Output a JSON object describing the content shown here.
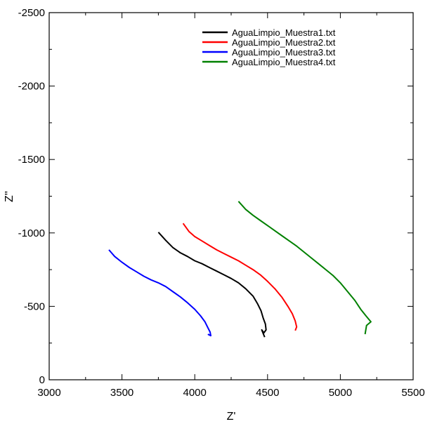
{
  "chart_data": {
    "type": "line",
    "title": "",
    "xlabel": "Z'",
    "ylabel": "Z''",
    "xlim": [
      3000,
      5500
    ],
    "ylim": [
      0,
      -2500
    ],
    "y_axis_inverted": true,
    "x_ticks": [
      3000,
      3500,
      4000,
      4500,
      5000,
      5500
    ],
    "y_ticks": [
      0,
      -500,
      -1000,
      -1500,
      -2000,
      -2500
    ],
    "grid": false,
    "legend_position": "top-right",
    "series": [
      {
        "name": "AguaLimpio_Muestra1.txt",
        "color": "#000000",
        "points": [
          [
            3750,
            -1005
          ],
          [
            3800,
            -950
          ],
          [
            3850,
            -900
          ],
          [
            3900,
            -865
          ],
          [
            3950,
            -840
          ],
          [
            4000,
            -810
          ],
          [
            4050,
            -790
          ],
          [
            4100,
            -765
          ],
          [
            4150,
            -740
          ],
          [
            4200,
            -715
          ],
          [
            4250,
            -690
          ],
          [
            4300,
            -660
          ],
          [
            4350,
            -620
          ],
          [
            4400,
            -570
          ],
          [
            4430,
            -520
          ],
          [
            4455,
            -470
          ],
          [
            4470,
            -420
          ],
          [
            4485,
            -380
          ],
          [
            4490,
            -340
          ],
          [
            4475,
            -320
          ],
          [
            4460,
            -340
          ],
          [
            4480,
            -290
          ]
        ]
      },
      {
        "name": "AguaLimpio_Muestra2.txt",
        "color": "#ff0000",
        "points": [
          [
            3920,
            -1065
          ],
          [
            3960,
            -1010
          ],
          [
            4000,
            -975
          ],
          [
            4050,
            -945
          ],
          [
            4100,
            -915
          ],
          [
            4150,
            -885
          ],
          [
            4200,
            -860
          ],
          [
            4250,
            -835
          ],
          [
            4300,
            -810
          ],
          [
            4350,
            -780
          ],
          [
            4400,
            -750
          ],
          [
            4450,
            -715
          ],
          [
            4500,
            -670
          ],
          [
            4550,
            -620
          ],
          [
            4600,
            -560
          ],
          [
            4640,
            -500
          ],
          [
            4670,
            -450
          ],
          [
            4690,
            -400
          ],
          [
            4700,
            -360
          ],
          [
            4690,
            -335
          ]
        ]
      },
      {
        "name": "AguaLimpio_Muestra3.txt",
        "color": "#0000ff",
        "points": [
          [
            3410,
            -885
          ],
          [
            3450,
            -840
          ],
          [
            3500,
            -800
          ],
          [
            3550,
            -765
          ],
          [
            3600,
            -735
          ],
          [
            3650,
            -705
          ],
          [
            3700,
            -680
          ],
          [
            3750,
            -660
          ],
          [
            3800,
            -635
          ],
          [
            3850,
            -600
          ],
          [
            3900,
            -565
          ],
          [
            3950,
            -525
          ],
          [
            4000,
            -480
          ],
          [
            4040,
            -435
          ],
          [
            4070,
            -395
          ],
          [
            4090,
            -355
          ],
          [
            4105,
            -325
          ],
          [
            4110,
            -300
          ],
          [
            4090,
            -310
          ]
        ]
      },
      {
        "name": "AguaLimpio_Muestra4.txt",
        "color": "#008000",
        "points": [
          [
            4300,
            -1215
          ],
          [
            4350,
            -1160
          ],
          [
            4400,
            -1120
          ],
          [
            4450,
            -1085
          ],
          [
            4500,
            -1050
          ],
          [
            4550,
            -1015
          ],
          [
            4600,
            -980
          ],
          [
            4650,
            -945
          ],
          [
            4700,
            -910
          ],
          [
            4750,
            -870
          ],
          [
            4800,
            -830
          ],
          [
            4850,
            -790
          ],
          [
            4900,
            -750
          ],
          [
            4950,
            -710
          ],
          [
            5000,
            -660
          ],
          [
            5050,
            -600
          ],
          [
            5100,
            -540
          ],
          [
            5140,
            -480
          ],
          [
            5180,
            -430
          ],
          [
            5210,
            -395
          ],
          [
            5180,
            -370
          ],
          [
            5170,
            -310
          ]
        ]
      }
    ]
  }
}
